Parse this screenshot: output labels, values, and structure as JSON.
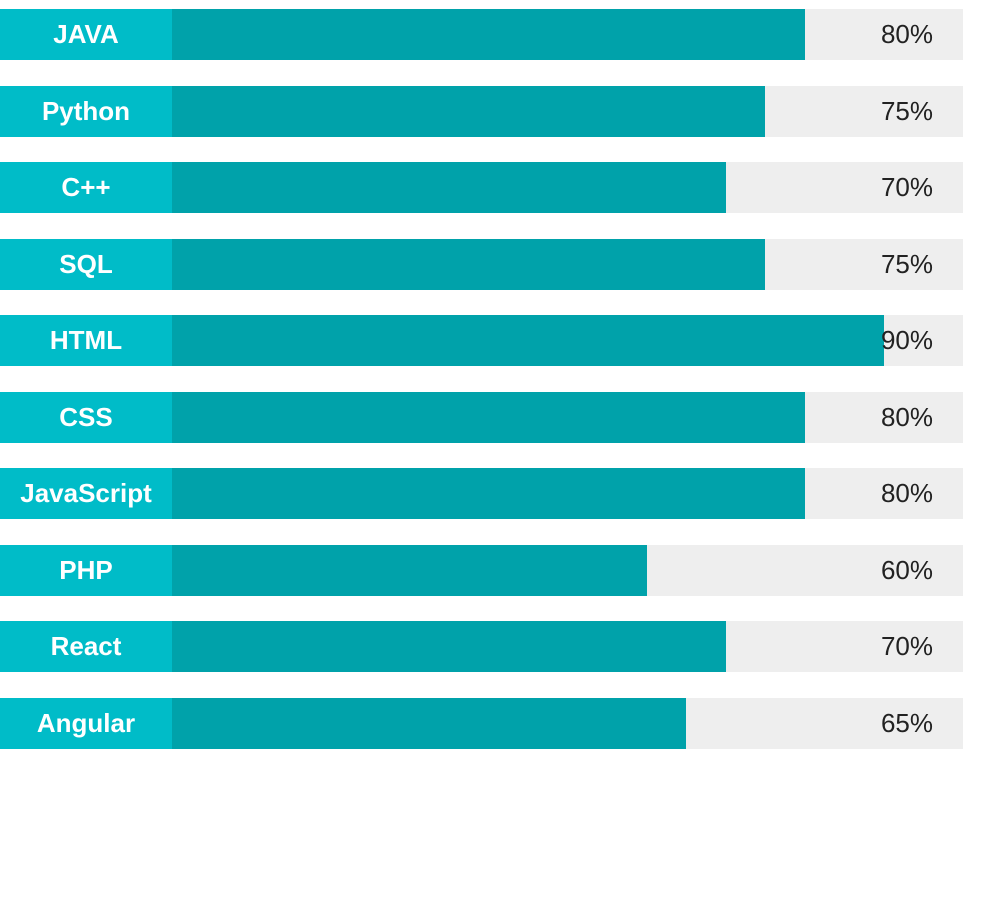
{
  "colors": {
    "label_background": "#00bcc8",
    "fill": "#00a2aa",
    "track": "#eeeeee",
    "label_text": "#ffffff",
    "value_text": "#222222"
  },
  "chart_data": {
    "type": "bar",
    "orientation": "horizontal",
    "categories": [
      "JAVA",
      "Python",
      "C++",
      "SQL",
      "HTML",
      "CSS",
      "JavaScript",
      "PHP",
      "React",
      "Angular"
    ],
    "values": [
      80,
      75,
      70,
      75,
      90,
      80,
      80,
      60,
      70,
      65
    ],
    "value_labels": [
      "80%",
      "75%",
      "70%",
      "75%",
      "90%",
      "80%",
      "80%",
      "60%",
      "70%",
      "65%"
    ],
    "xlim": [
      0,
      100
    ],
    "grid": false,
    "legend": "none"
  }
}
